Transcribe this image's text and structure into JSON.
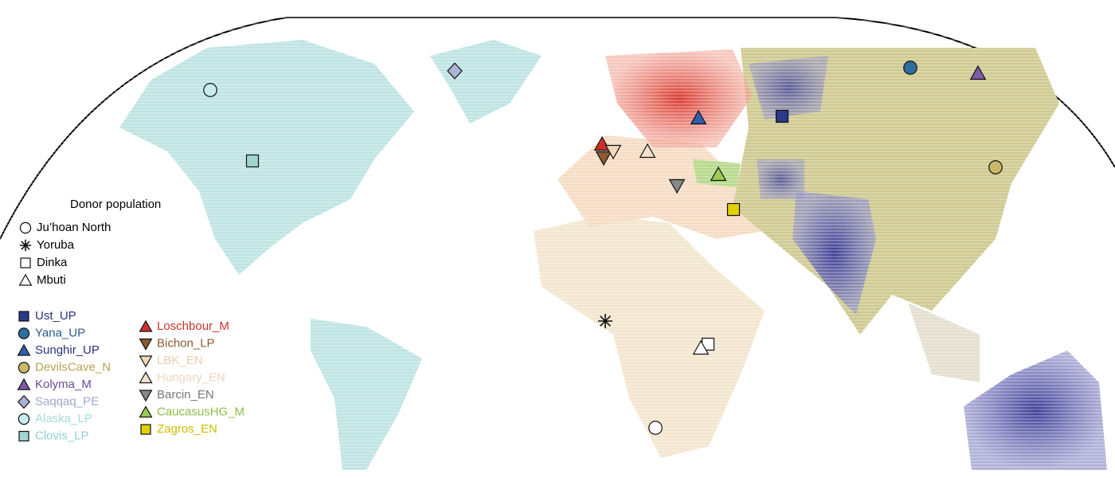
{
  "legend_donor": {
    "title": "Donor population",
    "items": [
      {
        "label": "Ju’hoan North",
        "shape": "circle"
      },
      {
        "label": "Yoruba",
        "shape": "asterisk"
      },
      {
        "label": "Dinka",
        "shape": "square"
      },
      {
        "label": "Mbuti",
        "shape": "triangle-up"
      }
    ]
  },
  "legend_samples": {
    "columns": [
      [
        {
          "label": "Ust_UP",
          "shape": "square",
          "color": "#2a3a8a",
          "text_color": "#26337a"
        },
        {
          "label": "Yana_UP",
          "shape": "circle",
          "color": "#2f6f9f",
          "text_color": "#2a5a8a"
        },
        {
          "label": "Sunghir_UP",
          "shape": "triangle-up",
          "color": "#2f5fae",
          "text_color": "#26337a"
        },
        {
          "label": "DevilsCave_N",
          "shape": "circle",
          "color": "#c9b86a",
          "text_color": "#b8a250"
        },
        {
          "label": "Kolyma_M",
          "shape": "triangle-up",
          "color": "#7d5aa8",
          "text_color": "#6a4a9a"
        },
        {
          "label": "Saqqaq_PE",
          "shape": "diamond",
          "color": "#a9b4d6",
          "text_color": "#a0a8cc"
        },
        {
          "label": "Alaska_LP",
          "shape": "circle",
          "color": "#c8ecec",
          "text_color": "#a8dcdc"
        },
        {
          "label": "Clovis_LP",
          "shape": "square",
          "color": "#9fd6d0",
          "text_color": "#8fcfcf"
        }
      ],
      [
        {
          "label": "Loschbour_M",
          "shape": "triangle-up",
          "color": "#d0302a",
          "text_color": "#d0302a"
        },
        {
          "label": "Bichon_LP",
          "shape": "triangle-down",
          "color": "#8a5a30",
          "text_color": "#8a5a30"
        },
        {
          "label": "LBK_EN",
          "shape": "triangle-down",
          "color": "#f3d9b8",
          "text_color": "#e8cfae"
        },
        {
          "label": "Hungary_EN",
          "shape": "triangle-up",
          "color": "#f3e2cc",
          "text_color": "#ead8c0"
        },
        {
          "label": "Barcin_EN",
          "shape": "triangle-down",
          "color": "#888888",
          "text_color": "#777777"
        },
        {
          "label": "CaucasusHG_M",
          "shape": "triangle-up",
          "color": "#9bcc55",
          "text_color": "#8cbf45"
        },
        {
          "label": "Zagros_EN",
          "shape": "square",
          "color": "#e2d000",
          "text_color": "#cdbd00"
        }
      ]
    ]
  }
}
